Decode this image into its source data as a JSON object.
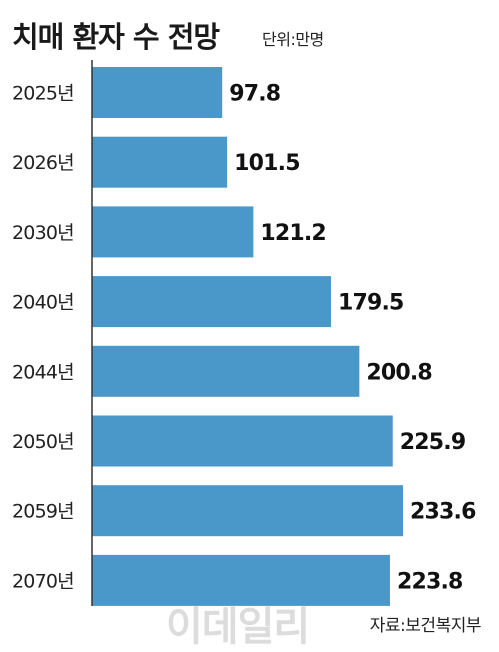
{
  "header": {
    "title": "치매 환자 수 전망",
    "unit": "단위:만명"
  },
  "footer": {
    "watermark": "이데일리",
    "source": "자료:보건복지부"
  },
  "colors": {
    "bar": "#4a98c9",
    "axis": "#333333"
  },
  "chart_data": {
    "type": "bar",
    "orientation": "horizontal",
    "categories": [
      "2025년",
      "2026년",
      "2030년",
      "2040년",
      "2044년",
      "2050년",
      "2059년",
      "2070년"
    ],
    "values": [
      97.8,
      101.5,
      121.2,
      179.5,
      200.8,
      225.9,
      233.6,
      223.8
    ],
    "title": "치매 환자 수 전망",
    "unit": "단위:만명",
    "xlim": [
      0,
      233.6
    ],
    "grid": false,
    "legend": "none"
  }
}
